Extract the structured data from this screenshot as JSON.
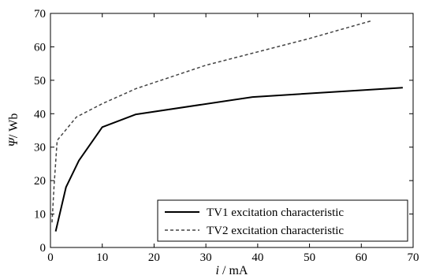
{
  "chart_data": {
    "type": "line",
    "xlabel_symbol": "i",
    "xlabel_unit": " / mA",
    "ylabel_symbol": "Ψ",
    "ylabel_unit": "/ Wb",
    "xlim": [
      0,
      70
    ],
    "ylim": [
      0,
      70
    ],
    "xticks": [
      0,
      10,
      20,
      30,
      40,
      50,
      60,
      70
    ],
    "yticks": [
      0,
      10,
      20,
      30,
      40,
      50,
      60,
      70
    ],
    "grid": false,
    "legend_position": "bottom-right",
    "series": [
      {
        "name": "TV1 excitation characteristic",
        "style": "solid",
        "color": "#000000",
        "x": [
          1.0,
          3.0,
          5.5,
          10.0,
          16.5,
          39.0,
          68.0
        ],
        "y": [
          4.8,
          18.0,
          26.0,
          36.0,
          39.8,
          45.0,
          47.8
        ]
      },
      {
        "name": "TV2 excitation characteristic",
        "style": "dashed",
        "color": "#444444",
        "x": [
          0.3,
          0.7,
          1.3,
          5.0,
          10.0,
          16.5,
          30.0,
          40.0,
          50.0,
          62.0
        ],
        "y": [
          7.5,
          18.5,
          32.0,
          39.0,
          43.0,
          47.5,
          54.5,
          58.5,
          62.5,
          67.8
        ]
      }
    ]
  }
}
